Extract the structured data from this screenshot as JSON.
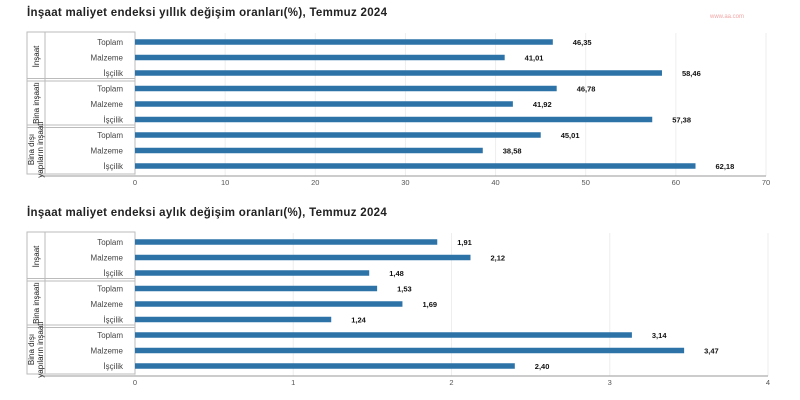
{
  "source_mark": "www.aa.com",
  "chart_data": [
    {
      "type": "bar",
      "orientation": "horizontal",
      "title": "İnşaat maliyet endeksi yıllık değişim oranları(%), Temmuz 2024",
      "xlabel": "",
      "ylabel": "",
      "xlim": [
        0,
        70
      ],
      "ticks": [
        "0",
        "10",
        "20",
        "30",
        "40",
        "50",
        "60",
        "70"
      ],
      "grid": true,
      "groups": [
        {
          "name": "İnşaat",
          "categories": [
            "Toplam",
            "Malzeme",
            "İşçilik"
          ],
          "values": [
            46.35,
            41.01,
            58.46
          ]
        },
        {
          "name": "Bina inşaatı",
          "categories": [
            "Toplam",
            "Malzeme",
            "İşçilik"
          ],
          "values": [
            46.78,
            41.92,
            57.38
          ]
        },
        {
          "name": "Bina dışı yapıların inşaatı",
          "categories": [
            "Toplam",
            "Malzeme",
            "İşçilik"
          ],
          "values": [
            45.01,
            38.58,
            62.18
          ]
        }
      ],
      "value_labels": [
        "46,35",
        "41,01",
        "58,46",
        "46,78",
        "41,92",
        "57,38",
        "45,01",
        "38,58",
        "62,18"
      ],
      "bar_color": "#2d73a8"
    },
    {
      "type": "bar",
      "orientation": "horizontal",
      "title": "İnşaat maliyet endeksi aylık değişim oranları(%), Temmuz 2024",
      "xlabel": "",
      "ylabel": "",
      "xlim": [
        0,
        4
      ],
      "ticks": [
        "0",
        "1",
        "2",
        "3",
        "4"
      ],
      "grid": true,
      "groups": [
        {
          "name": "İnşaat",
          "categories": [
            "Toplam",
            "Malzeme",
            "İşçilik"
          ],
          "values": [
            1.91,
            2.12,
            1.48
          ]
        },
        {
          "name": "Bina inşaatı",
          "categories": [
            "Toplam",
            "Malzeme",
            "İşçilik"
          ],
          "values": [
            1.53,
            1.69,
            1.24
          ]
        },
        {
          "name": "Bina dışı yapıların inşaatı",
          "categories": [
            "Toplam",
            "Malzeme",
            "İşçilik"
          ],
          "values": [
            3.14,
            3.47,
            2.4
          ]
        }
      ],
      "value_labels": [
        "1,91",
        "2,12",
        "1,48",
        "1,53",
        "1,69",
        "1,24",
        "3,14",
        "3,47",
        "2,40"
      ],
      "bar_color": "#2d73a8"
    }
  ]
}
